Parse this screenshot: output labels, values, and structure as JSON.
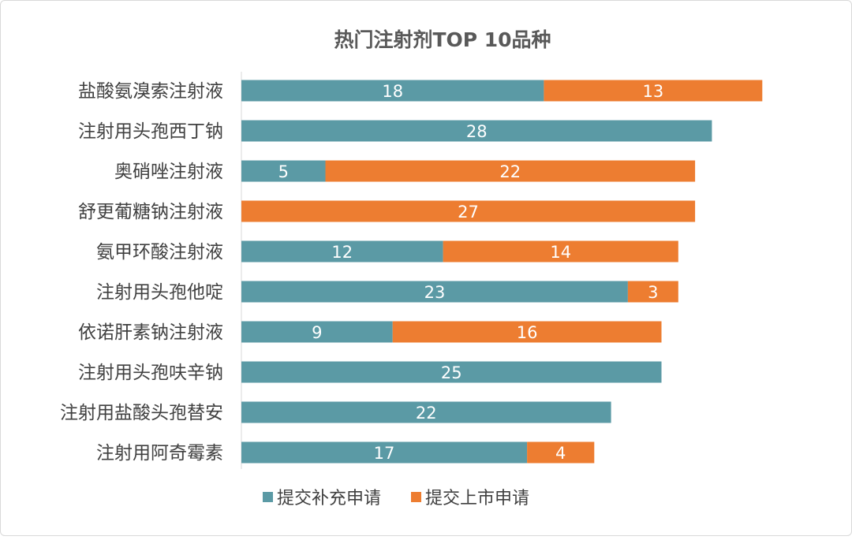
{
  "chart_data": {
    "type": "bar",
    "orientation": "horizontal",
    "stacked": true,
    "title": "热门注射剂TOP 10品种",
    "categories": [
      "盐酸氨溴索注射液",
      "注射用头孢西丁钠",
      "奥硝唑注射液",
      "舒更葡糖钠注射液",
      "氨甲环酸注射液",
      "注射用头孢他啶",
      "依诺肝素钠注射液",
      "注射用头孢呋辛钠",
      "注射用盐酸头孢替安",
      "注射用阿奇霉素"
    ],
    "series": [
      {
        "name": "提交补充申请",
        "color": "#5b9aa5",
        "values": [
          18,
          28,
          5,
          0,
          12,
          23,
          9,
          25,
          22,
          17
        ]
      },
      {
        "name": "提交上市申请",
        "color": "#ed7d31",
        "values": [
          13,
          0,
          22,
          27,
          14,
          3,
          16,
          0,
          0,
          4
        ]
      }
    ],
    "xlim": [
      0,
      32
    ],
    "grid": false,
    "legend_position": "bottom"
  }
}
